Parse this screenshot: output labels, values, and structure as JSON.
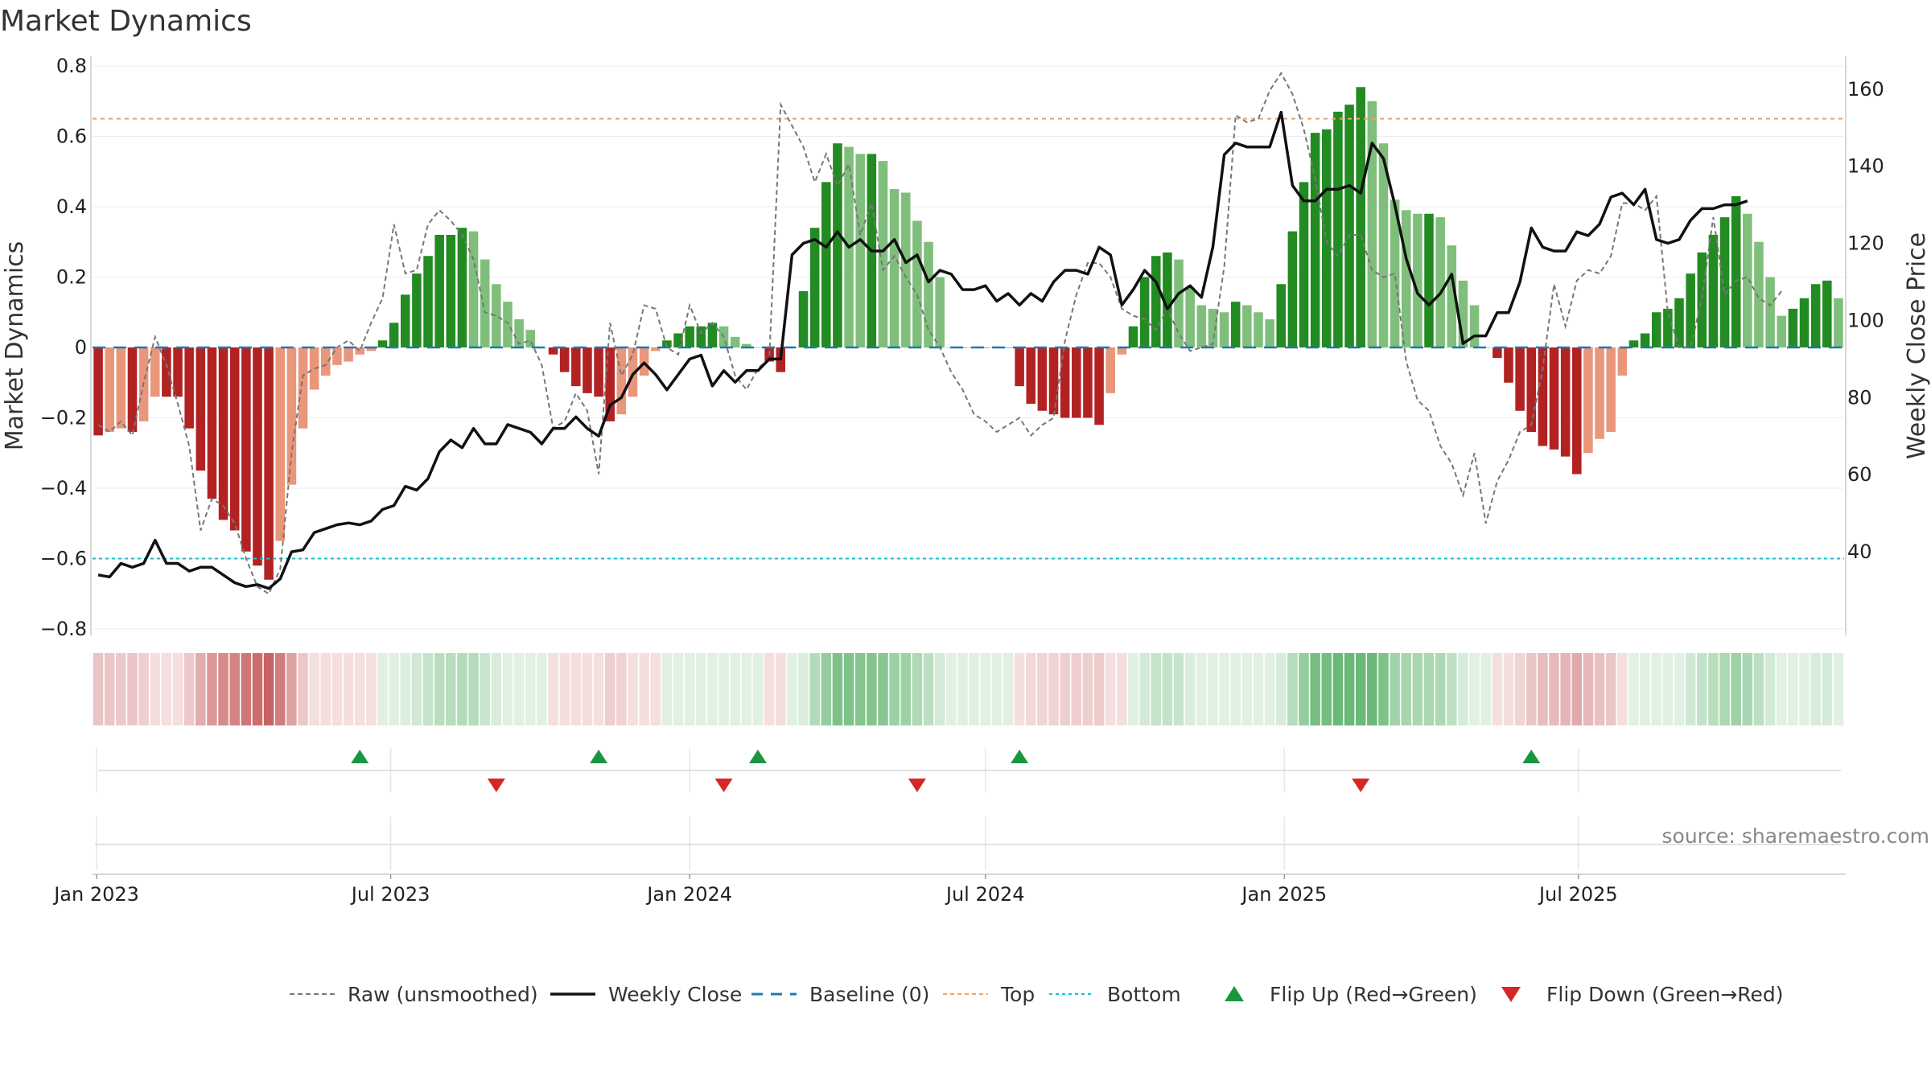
{
  "chart_data": {
    "type": "bar",
    "title": "Market Dynamics",
    "source": "source: sharemaestro.com",
    "colors": {
      "strong_green": "#228b22",
      "light_green": "#7fbf7b",
      "strong_red": "#b22222",
      "light_red": "#e9967a",
      "close_line": "#111111",
      "raw_line": "#777777",
      "baseline": "#1f77b4",
      "top_line": "#f4a460",
      "bottom_line": "#17becf",
      "flip_up": "#1a9641",
      "flip_down": "#d62728"
    },
    "left_axis": {
      "label": "Market Dynamics",
      "ylim": [
        -0.8,
        0.8
      ],
      "ticks": [
        -0.8,
        -0.6,
        -0.4,
        -0.2,
        0,
        0.2,
        0.4,
        0.6,
        0.8
      ],
      "tick_labels": [
        "−0.8",
        "−0.6",
        "−0.4",
        "−0.2",
        "0",
        "0.2",
        "0.4",
        "0.6",
        "0.8"
      ]
    },
    "right_axis": {
      "label": "Weekly Close Price",
      "ylim": [
        20,
        166
      ],
      "ticks": [
        40,
        60,
        80,
        100,
        120,
        140,
        160
      ],
      "tick_labels": [
        "40",
        "60",
        "80",
        "100",
        "120",
        "140",
        "160"
      ]
    },
    "x_axis": {
      "start": "2023-01-02",
      "end": "2025-09-22",
      "ticks": [
        "2023-01-01",
        "2023-07-01",
        "2024-01-01",
        "2024-07-01",
        "2025-01-01",
        "2025-07-01"
      ],
      "tick_labels": [
        "Jan 2023",
        "Jul 2023",
        "Jan 2024",
        "Jul 2024",
        "Jan 2025",
        "Jul 2025"
      ]
    },
    "thresholds": {
      "baseline": 0,
      "top": 0.65,
      "bottom": -0.6
    },
    "series": [
      {
        "name": "Market Dynamics",
        "values": [
          -0.25,
          -0.24,
          -0.23,
          -0.24,
          -0.21,
          -0.14,
          -0.14,
          -0.14,
          -0.23,
          -0.35,
          -0.43,
          -0.49,
          -0.52,
          -0.58,
          -0.62,
          -0.66,
          -0.55,
          -0.39,
          -0.23,
          -0.12,
          -0.08,
          -0.05,
          -0.04,
          -0.02,
          -0.01,
          0.02,
          0.07,
          0.15,
          0.21,
          0.26,
          0.32,
          0.32,
          0.34,
          0.33,
          0.25,
          0.18,
          0.13,
          0.08,
          0.05,
          0.0,
          -0.02,
          -0.07,
          -0.11,
          -0.13,
          -0.14,
          -0.21,
          -0.19,
          -0.14,
          -0.08,
          -0.01,
          0.02,
          0.04,
          0.06,
          0.06,
          0.07,
          0.06,
          0.03,
          0.01,
          0.0,
          -0.04,
          -0.07,
          0.0,
          0.16,
          0.34,
          0.47,
          0.58,
          0.57,
          0.55,
          0.55,
          0.53,
          0.45,
          0.44,
          0.36,
          0.3,
          0.2,
          0.0,
          0.0,
          0.0,
          0.0,
          0.0,
          0.0,
          -0.11,
          -0.16,
          -0.18,
          -0.19,
          -0.2,
          -0.2,
          -0.2,
          -0.22,
          -0.13,
          -0.02,
          0.06,
          0.2,
          0.26,
          0.27,
          0.25,
          0.17,
          0.12,
          0.11,
          0.1,
          0.13,
          0.12,
          0.1,
          0.08,
          0.18,
          0.33,
          0.47,
          0.61,
          0.62,
          0.67,
          0.69,
          0.74,
          0.7,
          0.58,
          0.42,
          0.39,
          0.38,
          0.38,
          0.37,
          0.29,
          0.19,
          0.12,
          0.0,
          -0.03,
          -0.1,
          -0.18,
          -0.24,
          -0.28,
          -0.29,
          -0.31,
          -0.36,
          -0.3,
          -0.26,
          -0.24,
          -0.08,
          0.02,
          0.04,
          0.1,
          0.11,
          0.14,
          0.21,
          0.27,
          0.32,
          0.37,
          0.43,
          0.38,
          0.3,
          0.2,
          0.09,
          0.11,
          0.14,
          0.18,
          0.19,
          0.14
        ]
      },
      {
        "name": "Weekly Close",
        "values": [
          34,
          33.5,
          37,
          36,
          37,
          43,
          37,
          37,
          35,
          36,
          36,
          34,
          32,
          31,
          31.5,
          30.5,
          33,
          40,
          40.5,
          45,
          46,
          47,
          47.5,
          47,
          48,
          51,
          52,
          57,
          56,
          59,
          66,
          69,
          67,
          72,
          68,
          68,
          73,
          72,
          71,
          68,
          72,
          72,
          75,
          72,
          70,
          78,
          80,
          86,
          89,
          86,
          82,
          86,
          90,
          91,
          83,
          87,
          84,
          87,
          87,
          90,
          90,
          117,
          120,
          121,
          119,
          123,
          119,
          121,
          118,
          118,
          121,
          115,
          117,
          110,
          113,
          112,
          108,
          108,
          109,
          105,
          107,
          104,
          107,
          105,
          110,
          113,
          113,
          112,
          119,
          117,
          104,
          108,
          113,
          110,
          103,
          107,
          109,
          106,
          119,
          143,
          146,
          145,
          145,
          145,
          154,
          135,
          131,
          131,
          134,
          134,
          135,
          133,
          146,
          142,
          130,
          116,
          107,
          104,
          107,
          112,
          94,
          96,
          96,
          102,
          102,
          110,
          124,
          119,
          118,
          118,
          123,
          122,
          125,
          132,
          133,
          130,
          134,
          121,
          120,
          121,
          126,
          129,
          129,
          130,
          130,
          131
        ]
      },
      {
        "name": "Raw (unsmoothed)",
        "values": [
          -0.22,
          -0.24,
          -0.21,
          -0.25,
          -0.1,
          0.03,
          -0.05,
          -0.16,
          -0.28,
          -0.52,
          -0.43,
          -0.45,
          -0.5,
          -0.6,
          -0.68,
          -0.7,
          -0.63,
          -0.3,
          -0.08,
          -0.06,
          -0.05,
          0.0,
          0.02,
          -0.01,
          0.07,
          0.14,
          0.35,
          0.21,
          0.22,
          0.35,
          0.39,
          0.36,
          0.32,
          0.25,
          0.1,
          0.09,
          0.07,
          0.01,
          0.02,
          -0.05,
          -0.23,
          -0.21,
          -0.13,
          -0.18,
          -0.36,
          0.07,
          -0.08,
          -0.02,
          0.12,
          0.11,
          0.0,
          -0.02,
          0.12,
          0.04,
          0.07,
          0.03,
          -0.08,
          -0.12,
          -0.06,
          -0.03,
          0.69,
          0.63,
          0.57,
          0.47,
          0.55,
          0.46,
          0.52,
          0.32,
          0.41,
          0.22,
          0.26,
          0.2,
          0.15,
          0.05,
          0.0,
          -0.07,
          -0.12,
          -0.19,
          -0.21,
          -0.24,
          -0.22,
          -0.2,
          -0.25,
          -0.22,
          -0.2,
          0.02,
          0.15,
          0.24,
          0.24,
          0.2,
          0.11,
          0.09,
          0.08,
          0.05,
          0.11,
          0.04,
          -0.01,
          0.0,
          0.01,
          0.23,
          0.66,
          0.64,
          0.65,
          0.73,
          0.78,
          0.72,
          0.62,
          0.48,
          0.3,
          0.26,
          0.32,
          0.32,
          0.22,
          0.2,
          0.21,
          -0.04,
          -0.15,
          -0.18,
          -0.28,
          -0.33,
          -0.42,
          -0.3,
          -0.5,
          -0.38,
          -0.32,
          -0.24,
          -0.22,
          -0.06,
          0.18,
          0.06,
          0.19,
          0.22,
          0.21,
          0.26,
          0.41,
          0.41,
          0.39,
          0.43,
          0.1,
          0.0,
          0.0,
          0.14,
          0.37,
          0.15,
          0.19,
          0.2,
          0.14,
          0.12,
          0.16
        ]
      }
    ],
    "flip_up_dates": [
      "2023-06-12",
      "2023-11-06",
      "2024-02-12",
      "2024-07-22",
      "2025-06-02"
    ],
    "flip_down_dates": [
      "2023-09-04",
      "2024-01-22",
      "2024-05-20",
      "2025-02-17"
    ],
    "legend": [
      {
        "label": "Raw (unsmoothed)",
        "kind": "dashed-gray"
      },
      {
        "label": "Weekly Close",
        "kind": "solid-black"
      },
      {
        "label": "Baseline (0)",
        "kind": "dashed-blue"
      },
      {
        "label": "Top",
        "kind": "dotted-orange"
      },
      {
        "label": "Bottom",
        "kind": "dotted-cyan"
      },
      {
        "label": "Flip Up (Red→Green)",
        "kind": "triangle-up"
      },
      {
        "label": "Flip Down (Green→Red)",
        "kind": "triangle-down"
      }
    ],
    "legend_position": "bottom-center",
    "grid": true
  }
}
